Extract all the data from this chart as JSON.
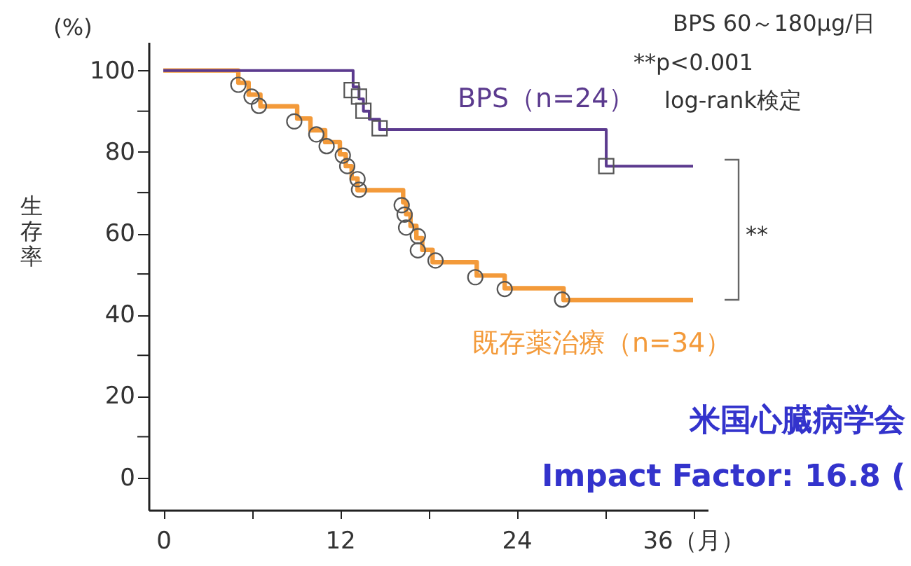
{
  "chart_data": {
    "type": "step",
    "ylabel": "生存率",
    "xlim": [
      -1,
      37
    ],
    "ylim": [
      -8,
      107
    ],
    "xticks": [
      0,
      {
        "value": 6,
        "label": null
      },
      12,
      {
        "value": 18,
        "label": null
      },
      24,
      {
        "value": 30,
        "label": null
      },
      {
        "value": 36,
        "label": "36（月）"
      }
    ],
    "yticks": [
      0,
      {
        "value": 10,
        "label": null
      },
      20,
      {
        "value": 30,
        "label": null
      },
      40,
      {
        "value": 50,
        "label": null
      },
      60,
      {
        "value": 70,
        "label": null
      },
      80,
      {
        "value": 90,
        "label": null
      },
      100
    ],
    "grid": false,
    "legend": false,
    "series": [
      {
        "name": "BPS（n=24）",
        "color": "#5b3a8e",
        "x": [
          0,
          12.9,
          13.3,
          13.6,
          14.0,
          14.7,
          30.1,
          36
        ],
        "values": [
          100,
          96,
          93,
          90,
          88,
          85.5,
          76.5,
          76.5
        ]
      },
      {
        "name": "既存薬治療（n=34）",
        "color": "#f39a3a",
        "x": [
          0,
          5.1,
          5.8,
          6.6,
          9.1,
          10.0,
          11.0,
          12.0,
          12.4,
          12.8,
          13.2,
          16.3,
          16.5,
          16.8,
          17.2,
          17.6,
          18.3,
          21.3,
          23.2,
          27.2,
          36
        ],
        "values": [
          100,
          97,
          94.1,
          91.2,
          88.2,
          85.3,
          82.4,
          79.4,
          76.5,
          73.5,
          70.6,
          67.6,
          64.7,
          61.8,
          58.8,
          55.9,
          52.9,
          49.6,
          46.5,
          43.6,
          43.6
        ]
      },
      {
        "type": "scatter",
        "marker": "square",
        "color": "#555555",
        "x": [
          12.8,
          13.3,
          13.6,
          14.7,
          30.1
        ],
        "values": [
          95.2,
          93.6,
          90.1,
          85.8,
          76.5
        ]
      },
      {
        "type": "scatter",
        "marker": "circle",
        "color": "#555555",
        "x": [
          5.1,
          6.0,
          6.5,
          8.9,
          10.4,
          11.1,
          12.2,
          12.5,
          13.2,
          13.3,
          16.2,
          16.4,
          16.5,
          17.3,
          17.3,
          18.5,
          21.2,
          23.2,
          27.1
        ],
        "values": [
          96.5,
          93.6,
          91.3,
          87.5,
          84.3,
          81.4,
          79.1,
          76.5,
          73.3,
          70.7,
          66.9,
          64.6,
          61.4,
          59.3,
          55.8,
          53.3,
          49.2,
          46.3,
          43.7
        ]
      }
    ],
    "annotations": [
      "(%)",
      "BPS 60～180μg/日",
      "**p<0.001",
      "log-rank検定",
      "**",
      "米国心臓病学会",
      "Impact Factor: 16.8 ("
    ]
  }
}
